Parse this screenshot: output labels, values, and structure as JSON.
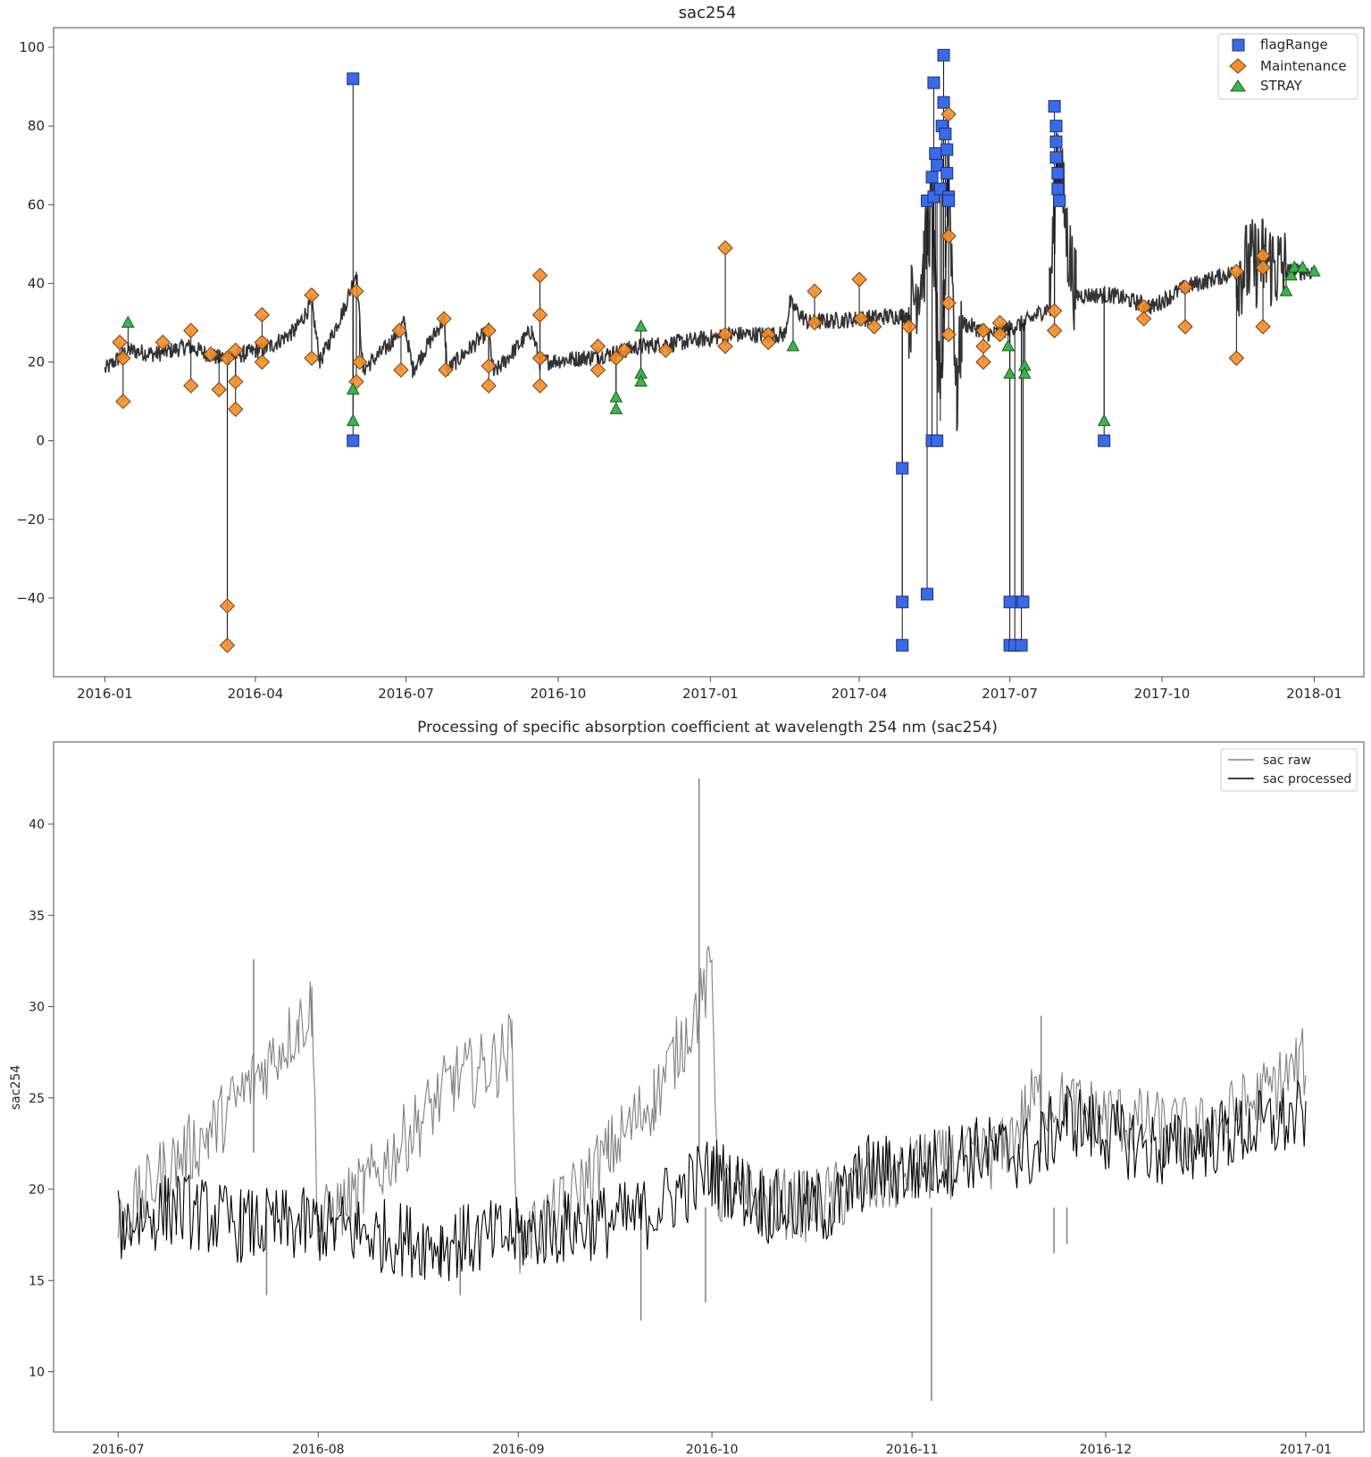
{
  "chart_data": [
    {
      "type": "scatter",
      "title": "sac254",
      "xlabel": "",
      "ylabel": "",
      "x_axis": "date",
      "xlim": [
        "2015-12-01",
        "2018-01-31"
      ],
      "ylim": [
        -60,
        105
      ],
      "x_ticks": [
        "2016-01",
        "2016-04",
        "2016-07",
        "2016-10",
        "2017-01",
        "2017-04",
        "2017-07",
        "2017-10",
        "2018-01"
      ],
      "y_ticks": [
        100,
        80,
        60,
        40,
        20,
        0,
        -20,
        -40
      ],
      "grid": false,
      "legend_position": "top-right",
      "line_series": {
        "name": "",
        "color": "#333333",
        "points": [
          [
            "2016-01-01",
            18
          ],
          [
            "2016-01-15",
            23
          ],
          [
            "2016-02-01",
            22
          ],
          [
            "2016-02-20",
            24
          ],
          [
            "2016-03-10",
            21
          ],
          [
            "2016-03-25",
            22
          ],
          [
            "2016-04-10",
            24
          ],
          [
            "2016-04-25",
            28
          ],
          [
            "2016-05-05",
            35
          ],
          [
            "2016-05-10",
            20
          ],
          [
            "2016-05-25",
            34
          ],
          [
            "2016-06-01",
            43
          ],
          [
            "2016-06-05",
            18
          ],
          [
            "2016-06-20",
            24
          ],
          [
            "2016-06-30",
            30
          ],
          [
            "2016-07-05",
            18
          ],
          [
            "2016-07-24",
            31
          ],
          [
            "2016-07-26",
            18
          ],
          [
            "2016-08-20",
            28
          ],
          [
            "2016-08-23",
            17
          ],
          [
            "2016-09-15",
            28
          ],
          [
            "2016-09-20",
            20
          ],
          [
            "2016-10-15",
            21
          ],
          [
            "2016-11-01",
            22
          ],
          [
            "2016-11-20",
            24
          ],
          [
            "2016-12-15",
            25
          ],
          [
            "2017-01-15",
            27
          ],
          [
            "2017-02-15",
            27
          ],
          [
            "2017-02-18",
            35
          ],
          [
            "2017-03-01",
            30
          ],
          [
            "2017-04-01",
            31
          ],
          [
            "2017-05-01",
            32
          ],
          [
            "2017-05-10",
            45
          ],
          [
            "2017-05-15",
            60
          ],
          [
            "2017-05-20",
            5
          ],
          [
            "2017-05-25",
            70
          ],
          [
            "2017-05-30",
            10
          ],
          [
            "2017-06-02",
            30
          ],
          [
            "2017-06-20",
            27
          ],
          [
            "2017-07-10",
            30
          ],
          [
            "2017-07-25",
            34
          ],
          [
            "2017-07-30",
            75
          ],
          [
            "2017-08-05",
            50
          ],
          [
            "2017-08-10",
            37
          ],
          [
            "2017-09-01",
            37
          ],
          [
            "2017-09-25",
            34
          ],
          [
            "2017-10-15",
            39
          ],
          [
            "2017-11-15",
            43
          ],
          [
            "2017-12-01",
            46
          ],
          [
            "2017-12-15",
            43
          ],
          [
            "2018-01-01",
            43
          ]
        ]
      },
      "series": [
        {
          "name": "flagRange",
          "marker": "square",
          "color": "#3b6ae6",
          "points": [
            [
              "2016-05-30",
              92
            ],
            [
              "2016-05-30",
              0
            ],
            [
              "2017-04-27",
              -7
            ],
            [
              "2017-04-27",
              -41
            ],
            [
              "2017-04-27",
              -52
            ],
            [
              "2017-05-12",
              -39
            ],
            [
              "2017-05-12",
              61
            ],
            [
              "2017-05-15",
              0
            ],
            [
              "2017-05-18",
              0
            ],
            [
              "2017-05-16",
              91
            ],
            [
              "2017-05-15",
              67
            ],
            [
              "2017-05-16",
              62
            ],
            [
              "2017-05-17",
              73
            ],
            [
              "2017-05-18",
              70
            ],
            [
              "2017-05-20",
              64
            ],
            [
              "2017-05-21",
              80
            ],
            [
              "2017-05-22",
              98
            ],
            [
              "2017-05-22",
              86
            ],
            [
              "2017-05-23",
              78
            ],
            [
              "2017-05-24",
              74
            ],
            [
              "2017-05-24",
              68
            ],
            [
              "2017-05-25",
              62
            ],
            [
              "2017-05-25",
              61
            ],
            [
              "2017-07-01",
              -41
            ],
            [
              "2017-07-01",
              -52
            ],
            [
              "2017-07-04",
              -52
            ],
            [
              "2017-07-08",
              -41
            ],
            [
              "2017-07-08",
              -52
            ],
            [
              "2017-07-09",
              -41
            ],
            [
              "2017-07-28",
              85
            ],
            [
              "2017-07-29",
              80
            ],
            [
              "2017-07-29",
              76
            ],
            [
              "2017-07-29",
              72
            ],
            [
              "2017-07-30",
              68
            ],
            [
              "2017-07-30",
              64
            ],
            [
              "2017-07-31",
              61
            ],
            [
              "2017-08-27",
              0
            ]
          ]
        },
        {
          "name": "Maintenance",
          "marker": "diamond",
          "color": "#f28e2b",
          "points": [
            [
              "2016-01-10",
              25
            ],
            [
              "2016-01-12",
              21
            ],
            [
              "2016-01-12",
              10
            ],
            [
              "2016-02-05",
              25
            ],
            [
              "2016-02-22",
              28
            ],
            [
              "2016-02-22",
              14
            ],
            [
              "2016-03-05",
              22
            ],
            [
              "2016-03-10",
              13
            ],
            [
              "2016-03-15",
              21
            ],
            [
              "2016-03-15",
              -42
            ],
            [
              "2016-03-15",
              -52
            ],
            [
              "2016-03-20",
              23
            ],
            [
              "2016-03-20",
              8
            ],
            [
              "2016-03-20",
              15
            ],
            [
              "2016-04-05",
              32
            ],
            [
              "2016-04-05",
              25
            ],
            [
              "2016-04-05",
              20
            ],
            [
              "2016-05-05",
              37
            ],
            [
              "2016-05-05",
              21
            ],
            [
              "2016-06-01",
              38
            ],
            [
              "2016-06-01",
              15
            ],
            [
              "2016-06-03",
              20
            ],
            [
              "2016-06-27",
              28
            ],
            [
              "2016-06-28",
              18
            ],
            [
              "2016-07-24",
              31
            ],
            [
              "2016-07-25",
              18
            ],
            [
              "2016-08-20",
              28
            ],
            [
              "2016-08-20",
              19
            ],
            [
              "2016-08-20",
              14
            ],
            [
              "2016-09-20",
              42
            ],
            [
              "2016-09-20",
              32
            ],
            [
              "2016-09-20",
              21
            ],
            [
              "2016-09-20",
              14
            ],
            [
              "2016-10-25",
              24
            ],
            [
              "2016-10-25",
              18
            ],
            [
              "2016-11-05",
              21
            ],
            [
              "2016-11-10",
              23
            ],
            [
              "2016-12-05",
              23
            ],
            [
              "2017-01-10",
              49
            ],
            [
              "2017-01-10",
              27
            ],
            [
              "2017-01-10",
              24
            ],
            [
              "2017-02-05",
              27
            ],
            [
              "2017-02-05",
              25
            ],
            [
              "2017-03-05",
              38
            ],
            [
              "2017-03-05",
              30
            ],
            [
              "2017-04-01",
              41
            ],
            [
              "2017-04-02",
              31
            ],
            [
              "2017-04-10",
              29
            ],
            [
              "2017-05-01",
              29
            ],
            [
              "2017-05-25",
              83
            ],
            [
              "2017-05-25",
              52
            ],
            [
              "2017-05-25",
              35
            ],
            [
              "2017-05-25",
              27
            ],
            [
              "2017-06-15",
              28
            ],
            [
              "2017-06-15",
              24
            ],
            [
              "2017-06-15",
              20
            ],
            [
              "2017-06-25",
              30
            ],
            [
              "2017-06-25",
              27
            ],
            [
              "2017-07-28",
              33
            ],
            [
              "2017-07-28",
              28
            ],
            [
              "2017-09-20",
              34
            ],
            [
              "2017-09-20",
              31
            ],
            [
              "2017-10-15",
              39
            ],
            [
              "2017-10-15",
              29
            ],
            [
              "2017-11-15",
              43
            ],
            [
              "2017-11-15",
              21
            ],
            [
              "2017-12-01",
              47
            ],
            [
              "2017-12-01",
              44
            ],
            [
              "2017-12-01",
              29
            ]
          ]
        },
        {
          "name": "STRAY",
          "marker": "triangle",
          "color": "#3cb44b",
          "points": [
            [
              "2016-01-15",
              30
            ],
            [
              "2016-05-30",
              13
            ],
            [
              "2016-05-30",
              5
            ],
            [
              "2016-11-05",
              11
            ],
            [
              "2016-11-05",
              8
            ],
            [
              "2016-11-20",
              29
            ],
            [
              "2016-11-20",
              17
            ],
            [
              "2016-11-20",
              15
            ],
            [
              "2017-02-20",
              24
            ],
            [
              "2017-06-30",
              24
            ],
            [
              "2017-07-01",
              17
            ],
            [
              "2017-07-10",
              19
            ],
            [
              "2017-07-10",
              17
            ],
            [
              "2017-08-27",
              5
            ],
            [
              "2017-12-15",
              38
            ],
            [
              "2017-12-18",
              42
            ],
            [
              "2017-12-20",
              44
            ],
            [
              "2017-12-25",
              44
            ],
            [
              "2018-01-01",
              43
            ]
          ]
        }
      ]
    },
    {
      "type": "line",
      "title": "Processing of specific absorption coefficient at wavelength  254 nm (sac254)",
      "xlabel": "",
      "ylabel": "sac254",
      "x_axis": "date",
      "xlim": [
        "2016-06-21",
        "2017-01-10"
      ],
      "ylim": [
        6.7,
        44.5
      ],
      "x_ticks": [
        "2016-07",
        "2016-08",
        "2016-09",
        "2016-10",
        "2016-11",
        "2016-12",
        "2017-01"
      ],
      "y_ticks": [
        40,
        35,
        30,
        25,
        20,
        15,
        10
      ],
      "grid": false,
      "legend_position": "top-right",
      "series": [
        {
          "name": "sac raw",
          "color": "#808080",
          "points": [
            [
              "2016-07-01",
              18
            ],
            [
              "2016-07-08",
              21
            ],
            [
              "2016-07-15",
              23
            ],
            [
              "2016-07-22",
              26
            ],
            [
              "2016-07-29",
              29
            ],
            [
              "2016-07-31",
              30
            ],
            [
              "2016-08-01",
              18
            ],
            [
              "2016-08-08",
              20
            ],
            [
              "2016-08-15",
              23
            ],
            [
              "2016-08-22",
              26
            ],
            [
              "2016-08-29",
              27
            ],
            [
              "2016-08-31",
              28
            ],
            [
              "2016-09-01",
              17
            ],
            [
              "2016-09-08",
              19
            ],
            [
              "2016-09-15",
              22
            ],
            [
              "2016-09-22",
              25
            ],
            [
              "2016-09-29",
              30
            ],
            [
              "2016-10-01",
              32
            ],
            [
              "2016-10-02",
              20
            ],
            [
              "2016-10-15",
              19
            ],
            [
              "2016-11-01",
              21
            ],
            [
              "2016-11-15",
              22
            ],
            [
              "2016-11-20",
              25
            ],
            [
              "2016-12-01",
              24
            ],
            [
              "2016-12-15",
              23
            ],
            [
              "2016-12-25",
              25
            ],
            [
              "2017-01-01",
              27
            ]
          ],
          "spikes": [
            [
              "2016-07-22",
              32.6
            ],
            [
              "2016-07-24",
              14.2
            ],
            [
              "2016-08-23",
              14.2
            ],
            [
              "2016-09-20",
              12.8
            ],
            [
              "2016-09-29",
              42.5
            ],
            [
              "2016-09-30",
              13.8
            ],
            [
              "2016-11-04",
              8.4
            ],
            [
              "2016-11-21",
              29.5
            ],
            [
              "2016-11-23",
              16.5
            ],
            [
              "2016-11-25",
              17.0
            ]
          ]
        },
        {
          "name": "sac processed",
          "color": "#000000",
          "points": [
            [
              "2016-07-01",
              18
            ],
            [
              "2016-07-10",
              19
            ],
            [
              "2016-07-20",
              18
            ],
            [
              "2016-08-01",
              18
            ],
            [
              "2016-08-10",
              17.5
            ],
            [
              "2016-08-20",
              17
            ],
            [
              "2016-09-01",
              17.5
            ],
            [
              "2016-09-10",
              18
            ],
            [
              "2016-09-20",
              18.5
            ],
            [
              "2016-10-01",
              21
            ],
            [
              "2016-10-10",
              19
            ],
            [
              "2016-10-20",
              19
            ],
            [
              "2016-10-25",
              21
            ],
            [
              "2016-11-01",
              21
            ],
            [
              "2016-11-10",
              22
            ],
            [
              "2016-11-20",
              22
            ],
            [
              "2016-11-25",
              24
            ],
            [
              "2016-12-01",
              23
            ],
            [
              "2016-12-10",
              22
            ],
            [
              "2016-12-20",
              23
            ],
            [
              "2017-01-01",
              24
            ]
          ]
        }
      ]
    }
  ]
}
